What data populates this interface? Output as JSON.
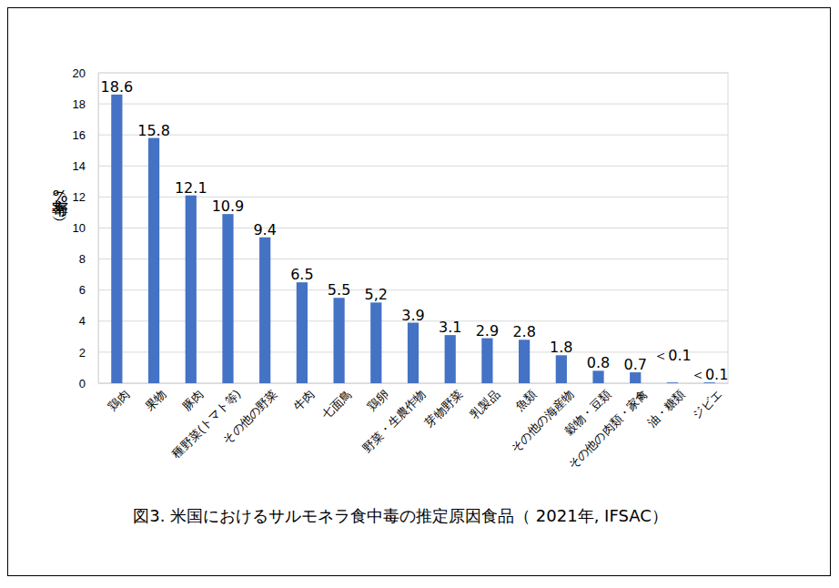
{
  "chart_data": {
    "type": "bar",
    "title": "図3. 米国におけるサルモネラ食中毒の推定原因食品（ 2021年, IFSAC）",
    "y_label": "寄与率（%）",
    "categories": [
      "鶏肉",
      "果物",
      "豚肉",
      "種野菜(トマト等)",
      "その他の野菜",
      "牛肉",
      "七面鳥",
      "鶏卵",
      "野菜・生農作物",
      "芽物野菜",
      "乳製品",
      "魚類",
      "その他の海産物",
      "穀物・豆類",
      "その他の肉類・家禽",
      "油・糖類",
      "ジビエ"
    ],
    "values": [
      18.6,
      15.8,
      12.1,
      10.9,
      9.4,
      6.5,
      5.5,
      5.2,
      3.9,
      3.1,
      2.9,
      2.8,
      1.8,
      0.8,
      0.7,
      0.05,
      0.05
    ],
    "value_labels": [
      "18.6",
      "15.8",
      "12.1",
      "10.9",
      "9.4",
      "6.5",
      "5.5",
      "5,2",
      "3.9",
      "3.1",
      "2.9",
      "2.8",
      "1.8",
      "0.8",
      "0.7",
      "＜0.1",
      "＜0.1"
    ],
    "color": "#4472c4",
    "ylim": [
      0,
      20
    ],
    "yticks": [
      0,
      2,
      4,
      6,
      8,
      10,
      12,
      14,
      16,
      18,
      20
    ],
    "grid": true,
    "data_labels": true
  }
}
